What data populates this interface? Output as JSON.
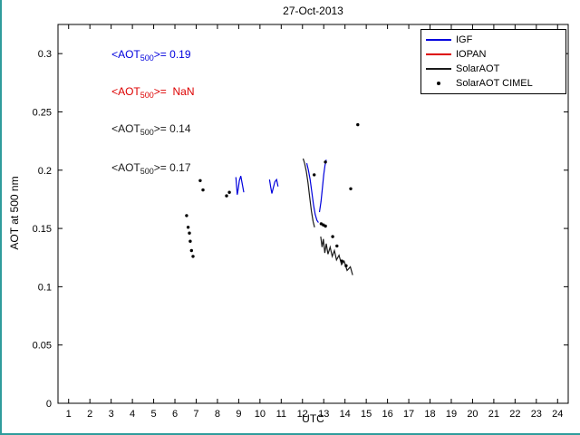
{
  "window": {
    "frame_color": "#2f9c9c",
    "background": "#ffffff"
  },
  "chart_data": {
    "type": "line",
    "title": "27-Oct-2013",
    "xlabel": "UTC",
    "ylabel": "AOT at 500 nm",
    "xlim": [
      0.5,
      24.5
    ],
    "ylim": [
      0,
      0.325
    ],
    "xticks": [
      1,
      2,
      3,
      4,
      5,
      6,
      7,
      8,
      9,
      10,
      11,
      12,
      13,
      14,
      15,
      16,
      17,
      18,
      19,
      20,
      21,
      22,
      23,
      24
    ],
    "yticks": [
      0,
      0.05,
      0.1,
      0.15,
      0.2,
      0.25,
      0.3
    ],
    "ytick_labels": [
      "0",
      "0.05",
      "0.1",
      "0.15",
      "0.2",
      "0.25",
      "0.3"
    ],
    "grid": false,
    "legend": {
      "position": "top-right",
      "items": [
        {
          "label": "IGF",
          "color": "#0000dd",
          "marker": "line"
        },
        {
          "label": "IOPAN",
          "color": "#dd0000",
          "marker": "line"
        },
        {
          "label": "SolarAOT",
          "color": "#1a1a1a",
          "marker": "line"
        },
        {
          "label": "SolarAOT CIMEL",
          "color": "#000000",
          "marker": "dot"
        }
      ]
    },
    "annotations": [
      {
        "pre": "<AOT",
        "sub": "500",
        "post": ">= 0.19",
        "color": "#0000dd",
        "x": 2.45,
        "y": 0.297
      },
      {
        "pre": "<AOT",
        "sub": "500",
        "post": ">=  NaN",
        "color": "#dd0000",
        "x": 2.45,
        "y": 0.265
      },
      {
        "pre": "<AOT",
        "sub": "500",
        "post": ">= 0.14",
        "color": "#1a1a1a",
        "x": 2.45,
        "y": 0.233
      },
      {
        "pre": "<AOT",
        "sub": "500",
        "post": ">= 0.17",
        "color": "#1a1a1a",
        "x": 2.45,
        "y": 0.2
      }
    ],
    "series": [
      {
        "name": "IGF",
        "type": "line",
        "color": "#0000dd",
        "segments": [
          [
            [
              8.87,
              0.194
            ],
            [
              8.9,
              0.186
            ],
            [
              8.93,
              0.179
            ],
            [
              8.98,
              0.184
            ],
            [
              9.03,
              0.191
            ],
            [
              9.1,
              0.195
            ],
            [
              9.18,
              0.187
            ],
            [
              9.24,
              0.181
            ]
          ],
          [
            [
              10.45,
              0.192
            ],
            [
              10.5,
              0.186
            ],
            [
              10.56,
              0.18
            ],
            [
              10.63,
              0.185
            ],
            [
              10.7,
              0.19
            ],
            [
              10.78,
              0.192
            ],
            [
              10.85,
              0.186
            ]
          ],
          [
            [
              12.2,
              0.206
            ],
            [
              12.28,
              0.2
            ],
            [
              12.36,
              0.192
            ],
            [
              12.44,
              0.181
            ],
            [
              12.52,
              0.17
            ],
            [
              12.6,
              0.162
            ],
            [
              12.68,
              0.157
            ],
            [
              12.75,
              0.155
            ]
          ],
          [
            [
              12.8,
              0.164
            ],
            [
              12.87,
              0.173
            ],
            [
              12.94,
              0.185
            ],
            [
              13.0,
              0.196
            ],
            [
              13.06,
              0.204
            ],
            [
              13.12,
              0.209
            ]
          ]
        ]
      },
      {
        "name": "IOPAN",
        "type": "line",
        "color": "#dd0000",
        "segments": []
      },
      {
        "name": "SolarAOT",
        "type": "line",
        "color": "#1a1a1a",
        "segments": [
          [
            [
              12.03,
              0.21
            ],
            [
              12.1,
              0.206
            ],
            [
              12.18,
              0.199
            ],
            [
              12.26,
              0.189
            ],
            [
              12.34,
              0.177
            ],
            [
              12.42,
              0.165
            ],
            [
              12.5,
              0.156
            ],
            [
              12.57,
              0.151
            ]
          ],
          [
            [
              12.86,
              0.143
            ],
            [
              12.92,
              0.134
            ],
            [
              12.98,
              0.141
            ],
            [
              13.05,
              0.129
            ],
            [
              13.12,
              0.137
            ],
            [
              13.2,
              0.128
            ],
            [
              13.3,
              0.134
            ],
            [
              13.4,
              0.126
            ],
            [
              13.5,
              0.131
            ],
            [
              13.6,
              0.123
            ],
            [
              13.72,
              0.127
            ],
            [
              13.84,
              0.119
            ],
            [
              13.96,
              0.122
            ],
            [
              14.1,
              0.114
            ],
            [
              14.25,
              0.117
            ],
            [
              14.36,
              0.11
            ]
          ]
        ]
      },
      {
        "name": "SolarAOT CIMEL",
        "type": "scatter",
        "color": "#000000",
        "points": [
          [
            6.55,
            0.161
          ],
          [
            6.62,
            0.151
          ],
          [
            6.68,
            0.146
          ],
          [
            6.72,
            0.139
          ],
          [
            6.78,
            0.131
          ],
          [
            6.85,
            0.126
          ],
          [
            7.19,
            0.191
          ],
          [
            7.32,
            0.183
          ],
          [
            8.43,
            0.178
          ],
          [
            8.56,
            0.181
          ],
          [
            12.55,
            0.196
          ],
          [
            13.08,
            0.207
          ],
          [
            12.88,
            0.154
          ],
          [
            12.98,
            0.153
          ],
          [
            13.08,
            0.152
          ],
          [
            13.42,
            0.143
          ],
          [
            13.62,
            0.135
          ],
          [
            13.85,
            0.122
          ],
          [
            14.05,
            0.118
          ],
          [
            14.27,
            0.184
          ],
          [
            14.6,
            0.239
          ]
        ]
      }
    ]
  }
}
